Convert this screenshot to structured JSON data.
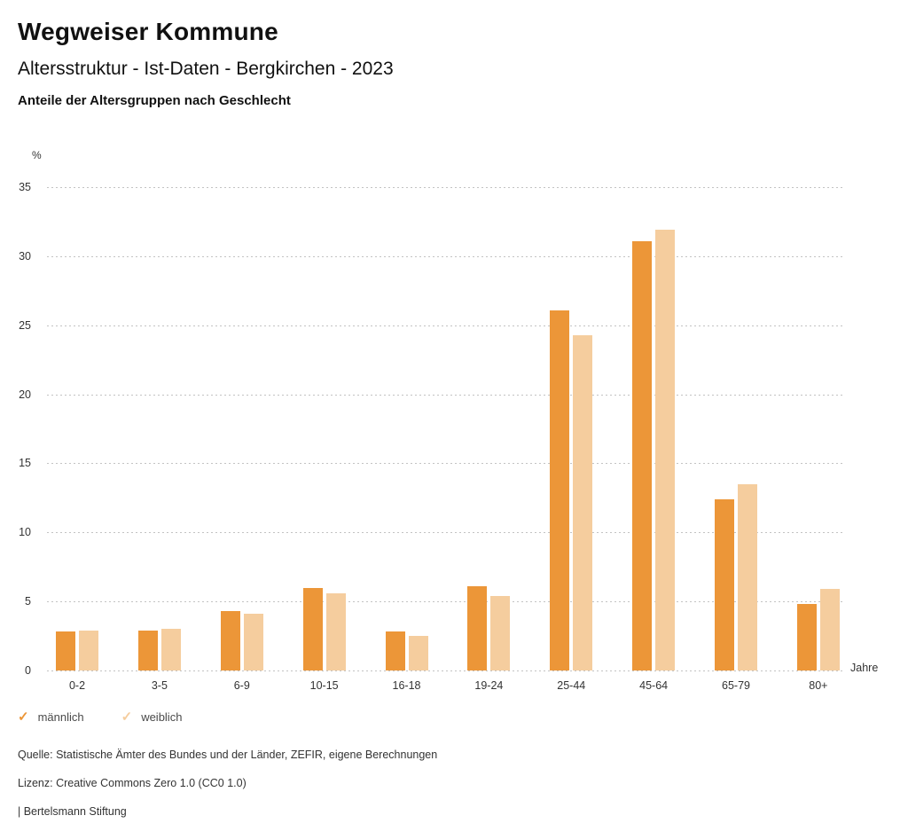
{
  "header": {
    "title": "Wegweiser Kommune",
    "subtitle": "Altersstruktur - Ist-Daten - Bergkirchen - 2023",
    "chart_heading": "Anteile der Altersgruppen nach Geschlecht"
  },
  "chart_data": {
    "type": "bar",
    "title": "Anteile der Altersgruppen nach Geschlecht",
    "categories": [
      "0-2",
      "3-5",
      "6-9",
      "10-15",
      "16-18",
      "19-24",
      "25-44",
      "45-64",
      "65-79",
      "80+"
    ],
    "series": [
      {
        "name": "männlich",
        "id": "maennlich",
        "color": "#EC9638",
        "values": [
          2.8,
          2.9,
          4.3,
          6.0,
          2.8,
          6.1,
          26.1,
          31.1,
          12.4,
          4.8
        ]
      },
      {
        "name": "weiblich",
        "id": "weiblich",
        "color": "#F5CD9E",
        "values": [
          2.9,
          3.0,
          4.1,
          5.6,
          2.5,
          5.4,
          24.3,
          31.9,
          13.5,
          5.9
        ]
      }
    ],
    "xlabel": "Jahre",
    "ylabel": "%",
    "ylim": [
      0,
      35
    ],
    "y_ticks": [
      35,
      30,
      25,
      20,
      15,
      10,
      5,
      0
    ],
    "grid": "dotted horizontal",
    "legend_position": "bottom-left",
    "legend_marker": "✓"
  },
  "colors": {
    "grid": "#c3c3c3",
    "text": "#333333"
  },
  "footer": {
    "source": "Quelle: Statistische Ämter des Bundes und der Länder, ZEFIR, eigene Berechnungen",
    "license": "Lizenz: Creative Commons Zero 1.0 (CC0 1.0)",
    "attribution": "| Bertelsmann Stiftung"
  }
}
